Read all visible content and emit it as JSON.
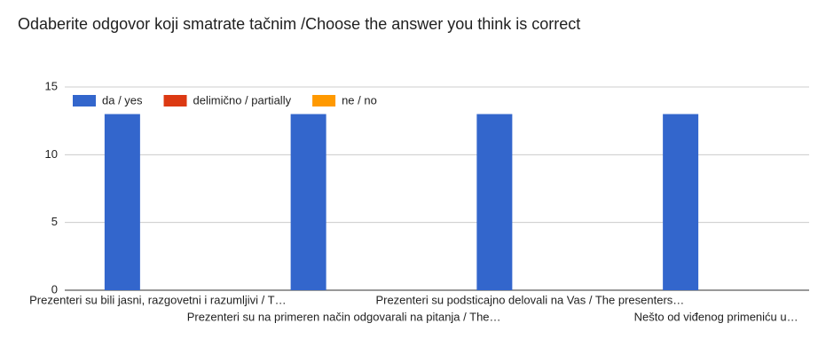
{
  "chart_data": {
    "type": "bar",
    "title": "Odaberite odgovor koji smatrate tačnim /Choose the answer you think is correct",
    "categories": [
      "Prezenteri su bili jasni, razgovetni i razumljivi / T…",
      "Prezenteri su na primeren način odgovarali na pitanja / The…",
      "Prezenteri su podsticajno delovali na Vas / The presenters…",
      "Nešto od viđenog primeniću u…"
    ],
    "series": [
      {
        "name": "da / yes",
        "color": "#3366cc",
        "values": [
          13,
          13,
          13,
          13
        ]
      },
      {
        "name": "delimično / partially",
        "color": "#dc3912",
        "values": [
          0,
          0,
          0,
          0
        ]
      },
      {
        "name": "ne / no",
        "color": "#ff9900",
        "values": [
          0,
          0,
          0,
          0
        ]
      }
    ],
    "ylim": [
      0,
      15
    ],
    "yticks": [
      0,
      5,
      10,
      15
    ],
    "grid": true,
    "legend": "top-left"
  }
}
